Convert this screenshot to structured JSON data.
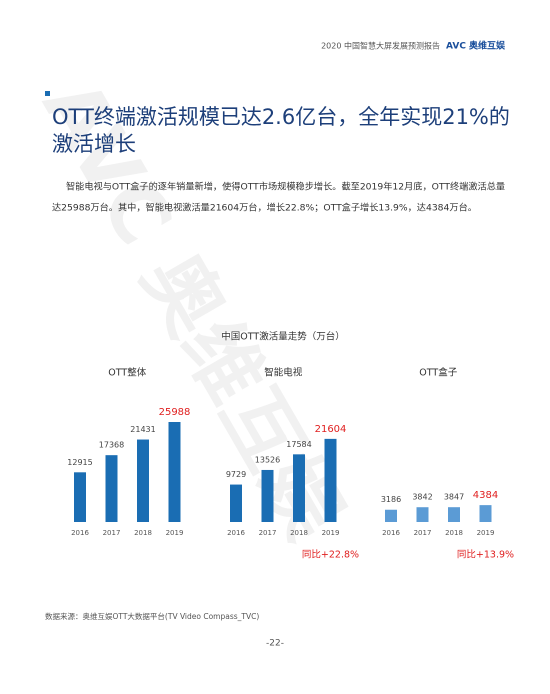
{
  "header": {
    "report": "2020 中国智慧大屏发展预测报告",
    "logo": "AVC 奥维互娱"
  },
  "watermark": "AVC 奥维互娱",
  "title": {
    "line1": "OTT终端激活规模已达2.6亿台，全年实现21%的",
    "line2": "激活增长"
  },
  "body": {
    "line1": "智能电视与OTT盒子的逐年销量新增，使得OTT市场规模稳步增长。截至2019年12月底，OTT终端激活总量",
    "line2": "达25988万台。其中，智能电视激活量21604万台，增长22.8%；OTT盒子增长13.9%，达4384万台。"
  },
  "figure_title": "中国OTT激活量走势（万台）",
  "chart_data": [
    {
      "type": "bar",
      "title": "OTT整体",
      "categories": [
        "2016",
        "2017",
        "2018",
        "2019"
      ],
      "values": [
        12915,
        17368,
        21431,
        25988
      ],
      "color": "#1a6db3",
      "highlight_color": "#e02020"
    },
    {
      "type": "bar",
      "title": "智能电视",
      "categories": [
        "2016",
        "2017",
        "2018",
        "2019"
      ],
      "values": [
        9729,
        13526,
        17584,
        21604
      ],
      "color": "#1a6db3",
      "highlight_color": "#e02020",
      "annotation": "同比+22.8%"
    },
    {
      "type": "bar",
      "title": "OTT盒子",
      "categories": [
        "2016",
        "2017",
        "2018",
        "2019"
      ],
      "values": [
        3186,
        3842,
        3847,
        4384
      ],
      "color": "#5b9bd5",
      "highlight_color": "#e02020",
      "annotation": "同比+13.9%"
    }
  ],
  "source": "数据来源：奥维互娱OTT大数据平台(TV Video Compass_TVC)",
  "page_number": "-22-"
}
